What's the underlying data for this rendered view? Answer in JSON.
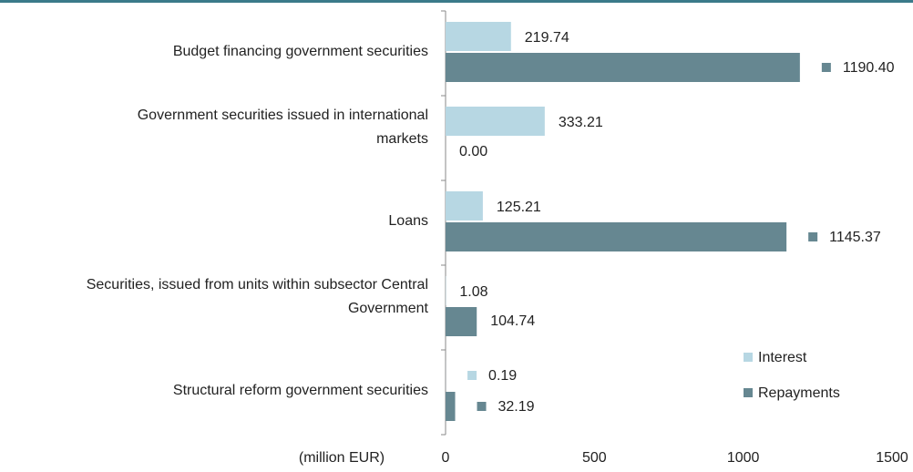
{
  "chart_data": {
    "type": "barh",
    "xlabel": "(million EUR)",
    "categories": [
      "Budget financing government securities",
      "Government securities issued in international\nmarkets",
      "Loans",
      "Securities, issued from units within subsector Central\nGovernment",
      "Structural reform government securities"
    ],
    "series": [
      {
        "name": "Interest",
        "color": "#b7d7e3",
        "values": [
          219.74,
          333.21,
          125.21,
          1.08,
          0.19
        ],
        "value_labels": [
          "219.74",
          "333.21",
          "125.21",
          "1.08",
          "0.19"
        ]
      },
      {
        "name": "Repayments",
        "color": "#668791",
        "values": [
          1190.4,
          0.0,
          1145.37,
          104.74,
          32.19
        ],
        "value_labels": [
          "1190.40",
          "0.00",
          "1145.37",
          "104.74",
          "32.19"
        ]
      }
    ],
    "xlim": [
      0,
      1500
    ],
    "xticks": [
      0,
      500,
      1000,
      1500
    ],
    "legend": "lower right"
  }
}
